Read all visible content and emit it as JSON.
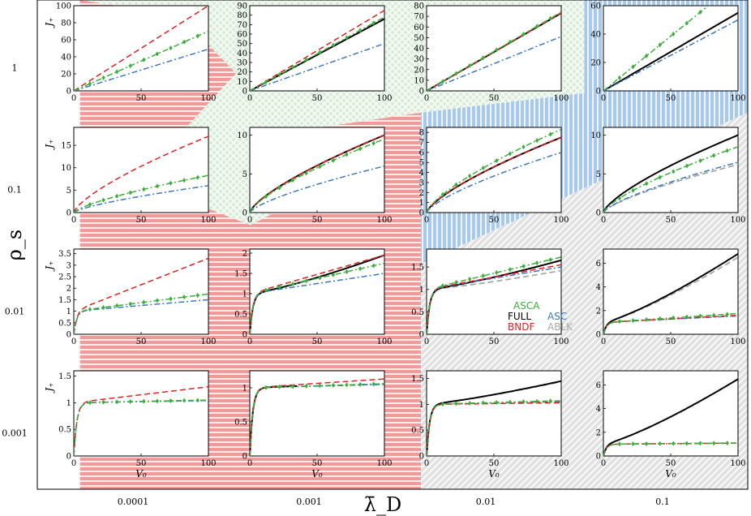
{
  "chart_data": {
    "type": "line",
    "grid": false,
    "xlabel": "λ̄_D",
    "ylabel": "ρ_s",
    "x_ticks": [
      "0.0001",
      "0.001",
      "0.01",
      "0.1"
    ],
    "y_ticks": [
      "1",
      "0.1",
      "0.01",
      "0.001"
    ],
    "subplot_xlabel": "V₀",
    "subplot_ylabel": "J₊",
    "legend": {
      "location": "inside panel (ρ_s=0.01, λ̄_D=0.01)",
      "entries": [
        {
          "key": "ASCA",
          "label": "ASCA",
          "color": "#3cae3c"
        },
        {
          "key": "FULL",
          "label": "FULL",
          "color": "#000000"
        },
        {
          "key": "ASC",
          "label": "ASC",
          "color": "#3a78c2"
        },
        {
          "key": "BNDF",
          "label": "BNDF",
          "color": "#e32020"
        },
        {
          "key": "ABLK",
          "label": "ABLK",
          "color": "#a8a8a8"
        }
      ]
    },
    "colors": {
      "region_bndf": "#f19a9a",
      "region_asca": "#d9edd8",
      "region_asc": "#a9c9ea",
      "region_ablk": "#e2e2e2"
    },
    "regions": [
      {
        "key": "BNDF",
        "polygon": [
          [
            0.06,
            1
          ],
          [
            0.2,
            0.97
          ],
          [
            0.28,
            0.85
          ],
          [
            0.14,
            0.63
          ],
          [
            0.3,
            0.54
          ],
          [
            0.34,
            0.57
          ],
          [
            0.4,
            0.74
          ],
          [
            0.54,
            0.77
          ],
          [
            0.54,
            0
          ],
          [
            0.06,
            0
          ]
        ]
      },
      {
        "key": "ASCA",
        "polygon": [
          [
            0.06,
            1
          ],
          [
            0.77,
            1
          ],
          [
            0.77,
            0.81
          ],
          [
            0.54,
            0.77
          ],
          [
            0.4,
            0.74
          ],
          [
            0.34,
            0.57
          ],
          [
            0.3,
            0.54
          ],
          [
            0.14,
            0.63
          ],
          [
            0.28,
            0.85
          ],
          [
            0.2,
            0.97
          ]
        ]
      },
      {
        "key": "ASC",
        "polygon": [
          [
            0.54,
            0.77
          ],
          [
            0.77,
            0.81
          ],
          [
            0.77,
            1
          ],
          [
            1,
            1
          ],
          [
            1,
            0.77
          ],
          [
            0.54,
            0.46
          ]
        ]
      },
      {
        "key": "ABLK",
        "polygon": [
          [
            0.54,
            0.46
          ],
          [
            1,
            0.77
          ],
          [
            1,
            0
          ],
          [
            0.54,
            0
          ]
        ]
      }
    ],
    "panels": [
      {
        "rho_s": "1",
        "lambda_D": "0.0001",
        "xlim": [
          0,
          100
        ],
        "ylim": [
          0,
          100
        ],
        "yticks": [
          0,
          20,
          40,
          60,
          80,
          100
        ],
        "show_ylabel": true,
        "show_xlabel": false,
        "ascaShape": "lin",
        "series": {
          "BNDF": [
            0,
            100
          ],
          "ASCA": [
            0,
            70
          ],
          "ASC": [
            0,
            49
          ]
        }
      },
      {
        "rho_s": "1",
        "lambda_D": "0.001",
        "xlim": [
          0,
          100
        ],
        "ylim": [
          0,
          90
        ],
        "yticks": [
          0,
          10,
          20,
          30,
          40,
          50,
          60,
          70,
          80,
          90
        ],
        "show_ylabel": false,
        "show_xlabel": false,
        "ascaShape": "lin",
        "series": {
          "BNDF": [
            0,
            85
          ],
          "FULL": [
            0,
            76
          ],
          "ASCA": [
            0,
            78
          ],
          "ASC": [
            0,
            50
          ]
        }
      },
      {
        "rho_s": "1",
        "lambda_D": "0.01",
        "xlim": [
          0,
          100
        ],
        "ylim": [
          0,
          80
        ],
        "yticks": [
          0,
          10,
          20,
          30,
          40,
          50,
          60,
          70,
          80
        ],
        "show_ylabel": false,
        "show_xlabel": false,
        "ascaShape": "lin",
        "series": {
          "BNDF": [
            0,
            73
          ],
          "FULL": [
            0,
            73
          ],
          "ASCA": [
            0,
            74
          ],
          "ASC": [
            0,
            51
          ]
        }
      },
      {
        "rho_s": "1",
        "lambda_D": "0.1",
        "xlim": [
          0,
          100
        ],
        "ylim": [
          0,
          60
        ],
        "yticks": [
          0,
          20,
          40,
          60
        ],
        "show_ylabel": false,
        "show_xlabel": false,
        "ascaShape": "lin",
        "series": {
          "FULL": [
            0,
            55
          ],
          "ASCA": [
            0,
            77
          ],
          "ASC": [
            0,
            50
          ]
        }
      },
      {
        "rho_s": "0.1",
        "lambda_D": "0.0001",
        "xlim": [
          0,
          100
        ],
        "ylim": [
          0,
          19
        ],
        "yticks": [
          0,
          5,
          10,
          15
        ],
        "show_ylabel": true,
        "show_xlabel": false,
        "ascaShape": "sqrt",
        "series": {
          "BNDF": [
            0,
            17
          ],
          "ASCA": [
            0,
            8.3
          ],
          "ASC": [
            0,
            6
          ]
        }
      },
      {
        "rho_s": "0.1",
        "lambda_D": "0.001",
        "xlim": [
          0,
          100
        ],
        "ylim": [
          0,
          11
        ],
        "yticks": [
          0,
          5,
          10
        ],
        "show_ylabel": false,
        "show_xlabel": false,
        "ascaShape": "sqrt",
        "series": {
          "BNDF": [
            0,
            10
          ],
          "FULL": [
            0,
            10
          ],
          "ASCA": [
            0,
            9.5
          ],
          "ASC": [
            0,
            6
          ]
        }
      },
      {
        "rho_s": "0.1",
        "lambda_D": "0.01",
        "xlim": [
          0,
          100
        ],
        "ylim": [
          0,
          8.5
        ],
        "yticks": [
          0,
          1,
          2,
          3,
          4,
          5,
          6,
          7,
          8
        ],
        "show_ylabel": false,
        "show_xlabel": false,
        "ascaShape": "sqrt",
        "series": {
          "BNDF": [
            0,
            7.5
          ],
          "FULL": [
            0,
            7.5
          ],
          "ASCA": [
            0,
            8.3
          ],
          "ASC": [
            0,
            6
          ]
        }
      },
      {
        "rho_s": "0.1",
        "lambda_D": "0.1",
        "xlim": [
          0,
          100
        ],
        "ylim": [
          0,
          11
        ],
        "yticks": [
          0,
          5,
          10
        ],
        "show_ylabel": false,
        "show_xlabel": false,
        "ascaShape": "sqrt",
        "series": {
          "FULL": [
            0,
            10
          ],
          "ASCA": [
            0,
            8.5
          ],
          "ASC": [
            0,
            6.5
          ],
          "ABLK": [
            0,
            6.2
          ]
        }
      },
      {
        "rho_s": "0.01",
        "lambda_D": "0.0001",
        "xlim": [
          0,
          100
        ],
        "ylim": [
          0,
          3.7
        ],
        "yticks": [
          0,
          0.5,
          1,
          1.5,
          2,
          2.5,
          3,
          3.5
        ],
        "show_ylabel": true,
        "show_xlabel": false,
        "ascaShape": "sat",
        "series": {
          "BNDF": [
            0,
            3.3
          ],
          "ASCA": [
            0,
            1.75
          ],
          "ASC": [
            0,
            1.5
          ]
        }
      },
      {
        "rho_s": "0.01",
        "lambda_D": "0.001",
        "xlim": [
          0,
          100
        ],
        "ylim": [
          0,
          2.1
        ],
        "yticks": [
          0,
          0.5,
          1,
          1.5,
          2
        ],
        "show_ylabel": false,
        "show_xlabel": false,
        "ascaShape": "sat",
        "series": {
          "BNDF": [
            0,
            1.95
          ],
          "FULL": [
            0,
            1.95
          ],
          "ASCA": [
            0,
            1.75
          ],
          "ASC": [
            0,
            1.5
          ]
        }
      },
      {
        "rho_s": "0.01",
        "lambda_D": "0.01",
        "xlim": [
          0,
          100
        ],
        "ylim": [
          0,
          1.9
        ],
        "yticks": [
          0,
          0.5,
          1,
          1.5
        ],
        "show_ylabel": false,
        "show_xlabel": false,
        "ascaShape": "sat",
        "series": {
          "BNDF": [
            0,
            1.55
          ],
          "FULL": [
            0,
            1.65
          ],
          "ASCA": [
            0,
            1.72
          ],
          "ASC": [
            0,
            1.5
          ],
          "ABLK": [
            0,
            1.42
          ]
        }
      },
      {
        "rho_s": "0.01",
        "lambda_D": "0.1",
        "xlim": [
          0,
          100
        ],
        "ylim": [
          0,
          7.2
        ],
        "yticks": [
          0,
          2,
          4,
          6
        ],
        "show_ylabel": false,
        "show_xlabel": false,
        "ascaShape": "sat",
        "series": {
          "FULL": [
            0,
            6.8
          ],
          "ABLK": [
            0,
            6.5
          ],
          "ASCA": [
            0,
            1.75
          ],
          "ASC": [
            0,
            1.55
          ],
          "BNDF": [
            0,
            1.6
          ]
        }
      },
      {
        "rho_s": "0.001",
        "lambda_D": "0.0001",
        "xlim": [
          0,
          100
        ],
        "ylim": [
          0,
          1.6
        ],
        "yticks": [
          0,
          0.5,
          1,
          1.5
        ],
        "show_ylabel": true,
        "show_xlabel": true,
        "ascaShape": "sat",
        "series": {
          "BNDF": [
            0,
            1.3
          ],
          "ASCA": [
            0,
            1.05
          ],
          "ASC": [
            0,
            1.04
          ]
        }
      },
      {
        "rho_s": "0.001",
        "lambda_D": "0.001",
        "xlim": [
          0,
          100
        ],
        "ylim": [
          0,
          1.25
        ],
        "yticks": [
          0,
          0.5,
          1
        ],
        "show_ylabel": false,
        "show_xlabel": true,
        "ascaShape": "sat",
        "series": {
          "BNDF": [
            0,
            1.13
          ],
          "FULL": [
            0,
            1.07
          ],
          "ASCA": [
            0,
            1.06
          ],
          "ASC": [
            0,
            1.05
          ]
        }
      },
      {
        "rho_s": "0.001",
        "lambda_D": "0.01",
        "xlim": [
          0,
          100
        ],
        "ylim": [
          0,
          1.65
        ],
        "yticks": [
          0,
          0.5,
          1,
          1.5
        ],
        "show_ylabel": false,
        "show_xlabel": true,
        "ascaShape": "sat",
        "series": {
          "FULL": [
            0,
            1.45
          ],
          "ABLK": [
            0,
            1.44
          ],
          "ASCA": [
            0,
            1.07
          ],
          "BNDF": [
            0,
            1.03
          ],
          "ASC": [
            0,
            1.05
          ]
        }
      },
      {
        "rho_s": "0.001",
        "lambda_D": "0.1",
        "xlim": [
          0,
          100
        ],
        "ylim": [
          0,
          7.2
        ],
        "yticks": [
          0,
          2,
          4,
          6
        ],
        "show_ylabel": false,
        "show_xlabel": true,
        "ascaShape": "sat",
        "series": {
          "FULL": [
            0,
            6.5
          ],
          "ABLK": [
            0,
            6.5
          ],
          "ASCA": [
            0,
            1.1
          ],
          "BNDF": [
            0,
            1.08
          ],
          "ASC": [
            0,
            1.08
          ]
        }
      }
    ]
  }
}
